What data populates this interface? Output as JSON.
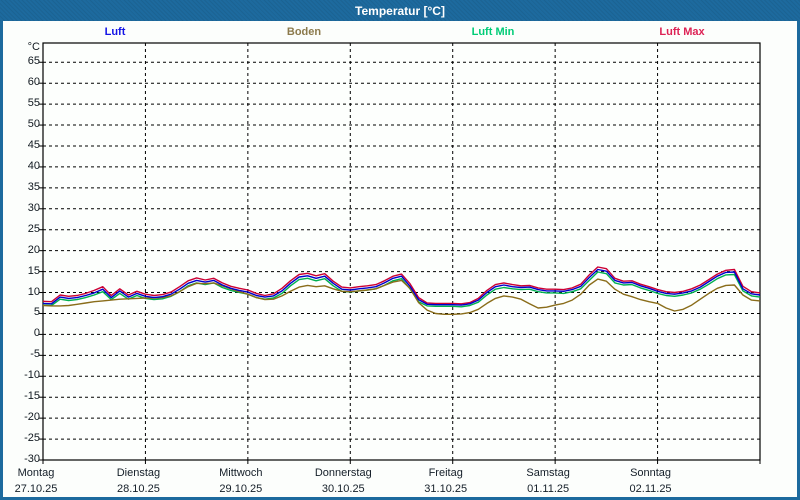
{
  "window": {
    "title": "Temperatur [°C]"
  },
  "legend": {
    "items": [
      {
        "label": "Luft",
        "color": "#1414e6"
      },
      {
        "label": "Boden",
        "color": "#8c7a4c"
      },
      {
        "label": "Luft Min",
        "color": "#00cc77"
      },
      {
        "label": "Luft Max",
        "color": "#dd2255"
      }
    ]
  },
  "chart_data": {
    "type": "line",
    "title": "Temperatur [°C]",
    "ylabel": "°C",
    "ylim": [
      -30,
      69.6
    ],
    "ytick_step": 5,
    "ytick_labels": [
      65,
      60,
      55,
      50,
      45,
      40,
      35,
      30,
      25,
      20,
      15,
      10,
      5,
      0,
      -5,
      -10,
      -15,
      -20,
      -25,
      -30
    ],
    "grid": "dashed",
    "legend_position": "top",
    "x_unit": "hours",
    "x_step_hours": 2,
    "x_total_hours": 168,
    "days": [
      {
        "name": "Montag",
        "date": "27.10.25"
      },
      {
        "name": "Dienstag",
        "date": "28.10.25"
      },
      {
        "name": "Mittwoch",
        "date": "29.10.25"
      },
      {
        "name": "Donnerstag",
        "date": "30.10.25"
      },
      {
        "name": "Freitag",
        "date": "31.10.25"
      },
      {
        "name": "Samstag",
        "date": "01.11.25"
      },
      {
        "name": "Sonntag",
        "date": "02.11.25"
      }
    ],
    "series": [
      {
        "name": "Luft",
        "color": "#0000cc",
        "values": [
          7.4,
          7.3,
          8.9,
          8.6,
          8.8,
          9.3,
          9.9,
          10.8,
          8.8,
          10.4,
          8.9,
          9.8,
          9.1,
          8.8,
          9.0,
          9.6,
          10.8,
          12.2,
          12.9,
          12.5,
          12.9,
          11.8,
          11.0,
          10.5,
          10.1,
          9.3,
          8.9,
          9.2,
          10.4,
          12.2,
          13.7,
          14.0,
          13.4,
          13.9,
          12.2,
          10.8,
          10.6,
          10.9,
          11.1,
          11.4,
          12.3,
          13.4,
          13.9,
          11.5,
          8.3,
          7.2,
          7.1,
          7.1,
          7.1,
          7.0,
          7.3,
          8.2,
          10.0,
          11.4,
          11.8,
          11.4,
          11.2,
          11.3,
          10.7,
          10.4,
          10.4,
          10.3,
          10.7,
          11.5,
          13.6,
          15.5,
          15.1,
          12.9,
          12.3,
          12.4,
          11.6,
          11.0,
          10.3,
          9.8,
          9.6,
          9.9,
          10.4,
          11.3,
          12.6,
          13.9,
          14.8,
          14.9,
          10.9,
          9.7,
          9.4
        ]
      },
      {
        "name": "Boden",
        "color": "#8a6d1a",
        "values": [
          6.9,
          6.8,
          6.8,
          6.9,
          7.2,
          7.5,
          7.8,
          8.0,
          8.2,
          8.4,
          8.5,
          8.6,
          8.7,
          8.7,
          8.8,
          9.2,
          10.2,
          11.4,
          12.2,
          12.1,
          12.3,
          11.6,
          10.9,
          10.2,
          9.6,
          8.8,
          8.3,
          8.4,
          9.2,
          10.3,
          11.3,
          11.7,
          11.4,
          11.6,
          10.9,
          10.3,
          10.2,
          10.4,
          10.6,
          10.9,
          11.7,
          12.5,
          12.9,
          11.0,
          7.6,
          5.8,
          5.0,
          4.8,
          4.8,
          4.9,
          5.2,
          6.0,
          7.4,
          8.6,
          9.2,
          8.9,
          8.4,
          7.3,
          6.3,
          6.5,
          7.0,
          7.4,
          8.2,
          9.6,
          11.8,
          13.2,
          12.7,
          10.8,
          9.6,
          9.0,
          8.3,
          7.8,
          7.4,
          6.3,
          5.6,
          6.0,
          7.0,
          8.4,
          9.8,
          11.0,
          11.7,
          11.8,
          9.4,
          8.2,
          8.0
        ]
      },
      {
        "name": "Luft Min",
        "color": "#00b050",
        "values": [
          7.0,
          6.9,
          8.4,
          8.1,
          8.3,
          8.8,
          9.4,
          10.2,
          8.3,
          9.8,
          8.4,
          9.3,
          8.6,
          8.3,
          8.5,
          9.1,
          10.2,
          11.6,
          12.3,
          11.9,
          12.3,
          11.2,
          10.5,
          10.0,
          9.6,
          8.8,
          8.4,
          8.7,
          9.8,
          11.6,
          13.1,
          13.4,
          12.8,
          13.3,
          11.6,
          10.3,
          10.1,
          10.4,
          10.6,
          10.9,
          11.7,
          12.8,
          13.3,
          10.9,
          7.8,
          6.8,
          6.7,
          6.7,
          6.7,
          6.6,
          6.9,
          7.7,
          9.4,
          10.8,
          11.2,
          10.9,
          10.7,
          10.8,
          10.2,
          9.9,
          9.9,
          9.8,
          10.2,
          10.9,
          12.9,
          14.9,
          14.5,
          12.3,
          11.8,
          11.9,
          11.1,
          10.5,
          9.8,
          9.3,
          9.1,
          9.4,
          9.9,
          10.8,
          12.0,
          13.3,
          14.2,
          14.3,
          10.4,
          9.2,
          8.9
        ]
      },
      {
        "name": "Luft Max",
        "color": "#cc0033",
        "values": [
          7.9,
          7.8,
          9.4,
          9.1,
          9.3,
          9.8,
          10.5,
          11.4,
          9.3,
          10.9,
          9.4,
          10.3,
          9.6,
          9.3,
          9.5,
          10.1,
          11.4,
          12.8,
          13.5,
          13.0,
          13.4,
          12.3,
          11.5,
          11.0,
          10.6,
          9.8,
          9.3,
          9.7,
          11.0,
          12.8,
          14.3,
          14.6,
          14.0,
          14.5,
          12.7,
          11.3,
          11.1,
          11.4,
          11.6,
          11.9,
          12.8,
          13.9,
          14.4,
          12.1,
          8.8,
          7.5,
          7.4,
          7.4,
          7.4,
          7.3,
          7.6,
          8.6,
          10.5,
          11.9,
          12.3,
          11.9,
          11.6,
          11.7,
          11.1,
          10.8,
          10.8,
          10.7,
          11.1,
          12.0,
          14.2,
          16.1,
          15.7,
          13.4,
          12.7,
          12.8,
          12.0,
          11.4,
          10.7,
          10.2,
          10.0,
          10.3,
          10.9,
          11.8,
          13.1,
          14.4,
          15.3,
          15.5,
          11.5,
          10.2,
          9.9
        ]
      }
    ]
  }
}
